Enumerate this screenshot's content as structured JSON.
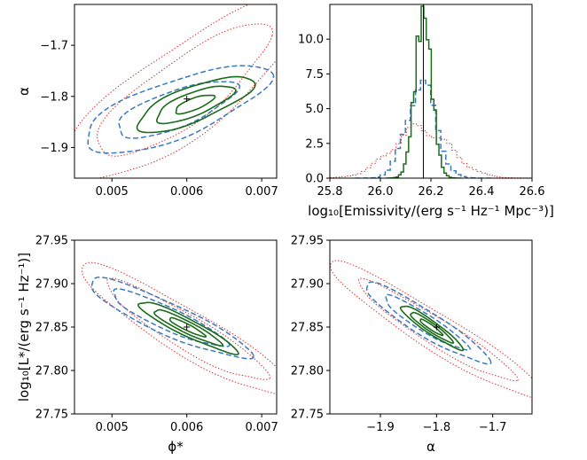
{
  "colors": {
    "red": "#e03030",
    "blue": "#3a7ac0",
    "green": "#1a6b1a"
  },
  "chart_data": [
    {
      "id": "phi_alpha",
      "type": "contour",
      "xlabel": "",
      "ylabel": "α",
      "xlim": [
        0.0045,
        0.0072
      ],
      "ylim": [
        -1.96,
        -1.62
      ],
      "xticks": [
        {
          "v": 0.005,
          "label": "0.005"
        },
        {
          "v": 0.006,
          "label": "0.006"
        },
        {
          "v": 0.007,
          "label": "0.007"
        }
      ],
      "yticks": [
        {
          "v": -1.9,
          "label": "−1.9"
        },
        {
          "v": -1.8,
          "label": "−1.8"
        },
        {
          "v": -1.7,
          "label": "−1.7"
        }
      ],
      "marker": [
        0.006,
        -1.805
      ],
      "contours": [
        {
          "series": "red",
          "cx": 0.00595,
          "cy": -1.79,
          "sx": 0.00068,
          "sy": 0.076,
          "rho": 0.82,
          "levels": [
            1.7,
            2.35
          ]
        },
        {
          "series": "blue",
          "cx": 0.00585,
          "cy": -1.825,
          "sx": 0.00055,
          "sy": 0.038,
          "rho": 0.72,
          "levels": [
            1.45,
            2.25
          ]
        },
        {
          "series": "green",
          "cx": 0.0061,
          "cy": -1.815,
          "sx": 0.00037,
          "sy": 0.026,
          "rho": 0.75,
          "levels": [
            0.7,
            1.4,
            2.1
          ]
        }
      ]
    },
    {
      "id": "emissivity",
      "type": "histogram",
      "xlabel": "log₁₀[Emissivity/(erg s⁻¹ Hz⁻¹ Mpc⁻³)]",
      "ylabel": "",
      "xlim": [
        25.8,
        26.6
      ],
      "ylim": [
        0,
        12.5
      ],
      "xticks": [
        {
          "v": 25.8,
          "label": "25.8"
        },
        {
          "v": 26.0,
          "label": "26.0"
        },
        {
          "v": 26.2,
          "label": "26.2"
        },
        {
          "v": 26.4,
          "label": "26.4"
        },
        {
          "v": 26.6,
          "label": "26.6"
        }
      ],
      "yticks": [
        {
          "v": 0,
          "label": "0.0"
        },
        {
          "v": 2.5,
          "label": "2.5"
        },
        {
          "v": 5,
          "label": "5.0"
        },
        {
          "v": 7.5,
          "label": "7.5"
        },
        {
          "v": 10,
          "label": "10.0"
        }
      ],
      "vline": 26.17,
      "hists": [
        {
          "series": "red",
          "mu": 26.16,
          "sigma": 0.115,
          "peak": 3.6,
          "bin": 0.02
        },
        {
          "series": "blue",
          "mu": 26.16,
          "sigma": 0.058,
          "peak": 6.8,
          "bin": 0.02
        },
        {
          "series": "green",
          "mu": 26.17,
          "sigma": 0.033,
          "peak": 11.8,
          "bin": 0.01
        }
      ]
    },
    {
      "id": "phi_L",
      "type": "contour",
      "xlabel": "ϕ*",
      "ylabel": "log₁₀[L*/(erg s⁻¹ Hz⁻¹)]",
      "xlim": [
        0.0045,
        0.0072
      ],
      "ylim": [
        27.75,
        27.95
      ],
      "xticks": [
        {
          "v": 0.005,
          "label": "0.005"
        },
        {
          "v": 0.006,
          "label": "0.006"
        },
        {
          "v": 0.007,
          "label": "0.007"
        }
      ],
      "yticks": [
        {
          "v": 27.75,
          "label": "27.75"
        },
        {
          "v": 27.8,
          "label": "27.80"
        },
        {
          "v": 27.85,
          "label": "27.85"
        },
        {
          "v": 27.9,
          "label": "27.90"
        },
        {
          "v": 27.95,
          "label": "27.95"
        }
      ],
      "marker": [
        0.006,
        27.85
      ],
      "contours": [
        {
          "series": "red",
          "cx": 0.006,
          "cy": 27.845,
          "sx": 0.00058,
          "sy": 0.031,
          "rho": -0.92,
          "levels": [
            1.85,
            2.45
          ]
        },
        {
          "series": "blue",
          "cx": 0.00575,
          "cy": 27.86,
          "sx": 0.00045,
          "sy": 0.019,
          "rho": -0.9,
          "levels": [
            1.7,
            2.4
          ]
        },
        {
          "series": "green",
          "cx": 0.006,
          "cy": 27.85,
          "sx": 0.0003,
          "sy": 0.0135,
          "rho": -0.93,
          "levels": [
            0.8,
            1.5,
            2.2
          ]
        }
      ]
    },
    {
      "id": "alpha_L",
      "type": "contour",
      "xlabel": "α",
      "ylabel": "",
      "xlim": [
        -1.99,
        -1.63
      ],
      "ylim": [
        27.75,
        27.95
      ],
      "xticks": [
        {
          "v": -1.9,
          "label": "−1.9"
        },
        {
          "v": -1.8,
          "label": "−1.8"
        },
        {
          "v": -1.7,
          "label": "−1.7"
        }
      ],
      "yticks": [
        {
          "v": 27.75,
          "label": "27.75"
        },
        {
          "v": 27.8,
          "label": "27.80"
        },
        {
          "v": 27.85,
          "label": "27.85"
        },
        {
          "v": 27.9,
          "label": "27.90"
        },
        {
          "v": 27.95,
          "label": "27.95"
        }
      ],
      "marker": [
        -1.8,
        27.85
      ],
      "contours": [
        {
          "series": "red",
          "cx": -1.8,
          "cy": 27.845,
          "sx": 0.08,
          "sy": 0.033,
          "rho": -0.95,
          "levels": [
            1.75,
            2.4
          ]
        },
        {
          "series": "blue",
          "cx": -1.82,
          "cy": 27.855,
          "sx": 0.048,
          "sy": 0.02,
          "rho": -0.93,
          "levels": [
            1.55,
            2.3
          ]
        },
        {
          "series": "green",
          "cx": -1.81,
          "cy": 27.85,
          "sx": 0.025,
          "sy": 0.0115,
          "rho": -0.94,
          "levels": [
            0.8,
            1.5,
            2.2
          ]
        }
      ]
    }
  ]
}
